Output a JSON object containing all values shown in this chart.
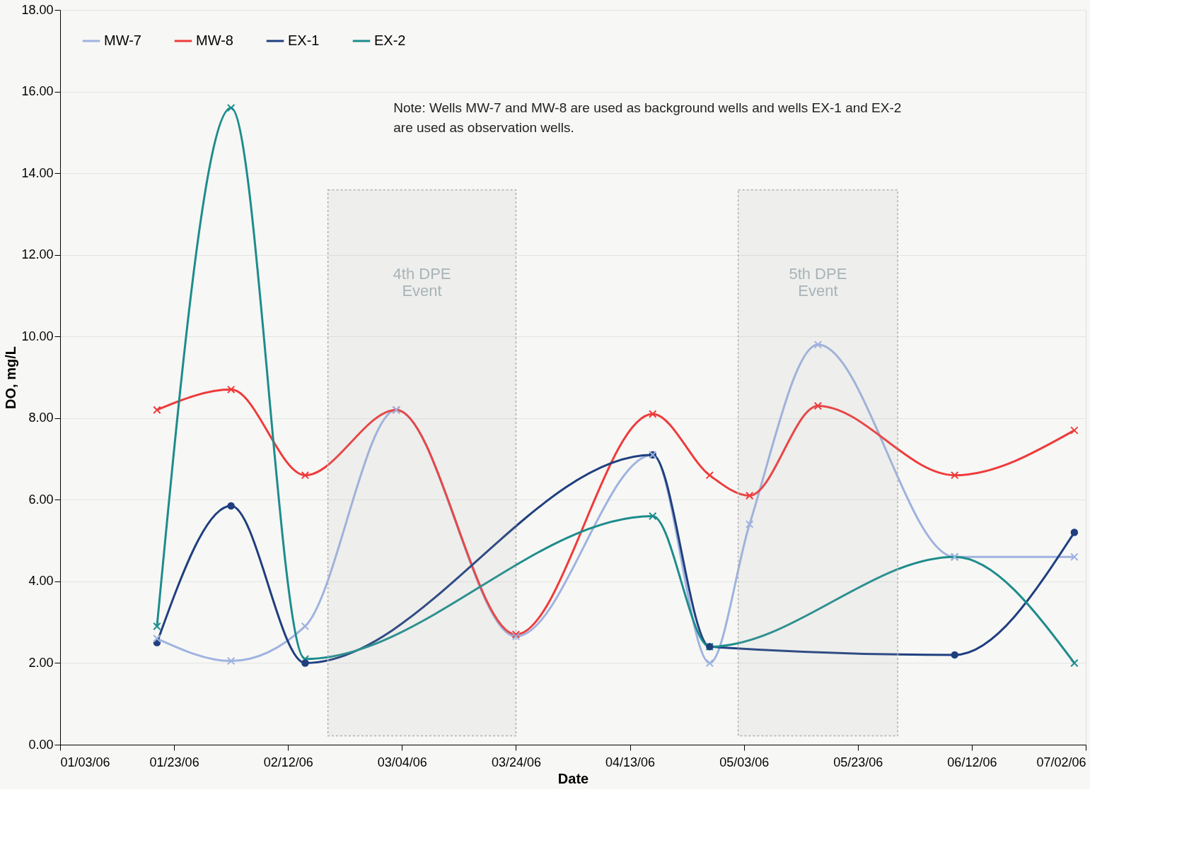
{
  "chart_data": {
    "type": "line",
    "xlabel": "Date",
    "ylabel": "DO, mg/L",
    "x": [
      "2006-01-20",
      "2006-02-02",
      "2006-02-15",
      "2006-03-03",
      "2006-03-24",
      "2006-04-17",
      "2006-04-27",
      "2006-05-04",
      "2006-05-16",
      "2006-06-09",
      "2006-06-30"
    ],
    "series": [
      {
        "name": "MW-7",
        "color": "#9fb3e0",
        "marker": "cross",
        "values": [
          2.6,
          2.05,
          2.9,
          8.2,
          2.65,
          7.1,
          2.0,
          5.4,
          9.8,
          4.6,
          4.6
        ]
      },
      {
        "name": "MW-8",
        "color": "#ee3b3b",
        "marker": "cross",
        "values": [
          8.2,
          8.7,
          6.6,
          8.2,
          2.7,
          8.1,
          6.6,
          6.1,
          8.3,
          6.6,
          7.7
        ]
      },
      {
        "name": "EX-1",
        "color": "#1f3f7f",
        "marker": "circle",
        "values": [
          2.5,
          5.85,
          2.0,
          null,
          null,
          7.1,
          2.4,
          null,
          null,
          2.2,
          5.2
        ]
      },
      {
        "name": "EX-2",
        "color": "#1d8c8c",
        "marker": "cross",
        "values": [
          2.9,
          15.6,
          2.1,
          null,
          null,
          5.6,
          2.4,
          null,
          null,
          4.6,
          2.0
        ]
      }
    ],
    "xlim": [
      "2006-01-03",
      "2006-07-02"
    ],
    "xticks": [
      {
        "value": "2006-01-03",
        "label": "01/03/06"
      },
      {
        "value": "2006-01-23",
        "label": "01/23/06"
      },
      {
        "value": "2006-02-12",
        "label": "02/12/06"
      },
      {
        "value": "2006-03-04",
        "label": "03/04/06"
      },
      {
        "value": "2006-03-24",
        "label": "03/24/06"
      },
      {
        "value": "2006-04-13",
        "label": "04/13/06"
      },
      {
        "value": "2006-05-03",
        "label": "05/03/06"
      },
      {
        "value": "2006-05-23",
        "label": "05/23/06"
      },
      {
        "value": "2006-06-12",
        "label": "06/12/06"
      },
      {
        "value": "2006-07-02",
        "label": "07/02/06"
      }
    ],
    "ylim": [
      0,
      18
    ],
    "yticks": [
      {
        "value": 0,
        "label": "0.00"
      },
      {
        "value": 2,
        "label": "2.00"
      },
      {
        "value": 4,
        "label": "4.00"
      },
      {
        "value": 6,
        "label": "6.00"
      },
      {
        "value": 8,
        "label": "8.00"
      },
      {
        "value": 10,
        "label": "10.00"
      },
      {
        "value": 12,
        "label": "12.00"
      },
      {
        "value": 14,
        "label": "14.00"
      },
      {
        "value": 16,
        "label": "16.00"
      },
      {
        "value": 18,
        "label": "18.00"
      }
    ],
    "bands": [
      {
        "axis": "x",
        "from": "2006-02-19",
        "to": "2006-03-24",
        "label": "4th DPE\nEvent",
        "color": "#b0b0b0"
      },
      {
        "axis": "x",
        "from": "2006-05-02",
        "to": "2006-05-30",
        "label": "5th DPE\nEvent",
        "color": "#b0b0b0"
      }
    ],
    "annotations": [
      "Note: Wells MW-7 and MW-8 are used as background wells and wells EX-1 and EX-2 are used as observation wells."
    ],
    "grid": "y",
    "legend": "top left",
    "line_style": "solid"
  }
}
